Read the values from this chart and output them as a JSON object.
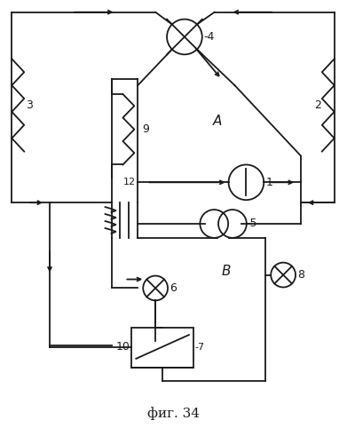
{
  "title": "фиг. 34",
  "bg_color": "#ffffff",
  "line_color": "#1a1a1a",
  "fig_width": 3.91,
  "fig_height": 5.0,
  "dpi": 100
}
